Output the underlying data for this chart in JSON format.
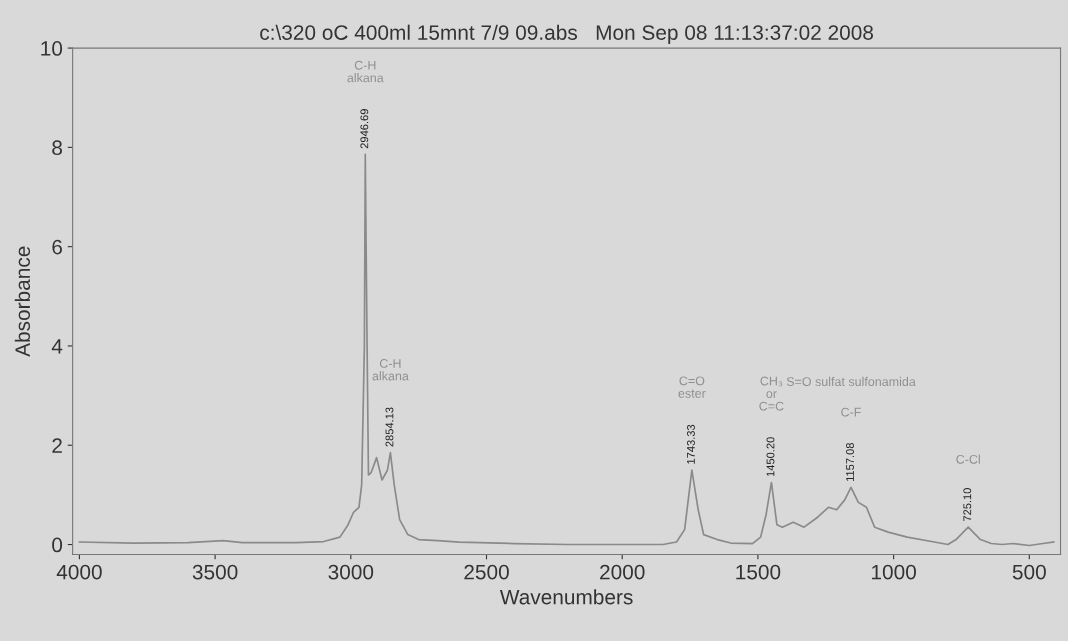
{
  "chart_data": {
    "type": "line",
    "title": "c:\\320 oC 400ml 15mnt 7/9 09.abs   Mon Sep 08 11:13:37:02 2008",
    "xlabel": "Wavenumbers",
    "ylabel": "Absorbance",
    "x": [
      4000,
      3800,
      3600,
      3470,
      3400,
      3200,
      3100,
      3040,
      3010,
      2990,
      2970,
      2960,
      2950,
      2946.69,
      2940,
      2935,
      2925,
      2905,
      2885,
      2865,
      2854.13,
      2840,
      2820,
      2790,
      2750,
      2680,
      2600,
      2400,
      2200,
      2000,
      1850,
      1800,
      1770,
      1743.33,
      1720,
      1700,
      1650,
      1600,
      1520,
      1490,
      1470,
      1450.2,
      1430,
      1410,
      1370,
      1330,
      1280,
      1240,
      1210,
      1180,
      1157.08,
      1130,
      1100,
      1070,
      1020,
      950,
      850,
      800,
      770,
      725.1,
      680,
      640,
      600,
      560,
      500,
      450,
      410
    ],
    "series": [
      {
        "color": "#8a8a8a",
        "values": [
          0.05,
          0.03,
          0.04,
          0.08,
          0.04,
          0.04,
          0.06,
          0.15,
          0.4,
          0.65,
          0.75,
          1.2,
          4.0,
          7.86,
          4.0,
          1.4,
          1.45,
          1.75,
          1.3,
          1.5,
          1.85,
          1.2,
          0.5,
          0.2,
          0.1,
          0.08,
          0.05,
          0.02,
          0.0,
          0.0,
          0.0,
          0.05,
          0.3,
          1.5,
          0.7,
          0.2,
          0.1,
          0.03,
          0.02,
          0.15,
          0.6,
          1.25,
          0.4,
          0.35,
          0.45,
          0.35,
          0.55,
          0.75,
          0.7,
          0.9,
          1.15,
          0.85,
          0.75,
          0.35,
          0.25,
          0.15,
          0.05,
          0.0,
          0.1,
          0.35,
          0.1,
          0.02,
          0.0,
          0.02,
          -0.02,
          0.02,
          0.05
        ]
      }
    ],
    "annotations": [
      {
        "text": "2946.69",
        "x": 2946.69,
        "y": 7.86
      },
      "C-H\nalkana",
      {
        "text": "2854.13",
        "x": 2854.13,
        "y": 1.85
      },
      "C-H\nalkana",
      {
        "text": "1743.33",
        "x": 1743.33,
        "y": 1.5
      },
      "C=O\nester",
      {
        "text": "1450.20",
        "x": 1450.2,
        "y": 1.25
      },
      "CH₃\nor\nC=C",
      {
        "text": "1157.08",
        "x": 1157.08,
        "y": 1.15
      },
      "C-F",
      "S=O sulfat sulfonamida",
      {
        "text": "725.10",
        "x": 725.1,
        "y": 0.35
      },
      "C-Cl"
    ],
    "xlim": [
      4025,
      385
    ],
    "xticks": [
      4000,
      3500,
      3000,
      2500,
      2000,
      1500,
      1000,
      500
    ],
    "ylim": [
      -0.2,
      10
    ],
    "yticks": [
      0,
      2,
      4,
      6,
      8,
      10
    ],
    "grid": false,
    "legend": false
  }
}
